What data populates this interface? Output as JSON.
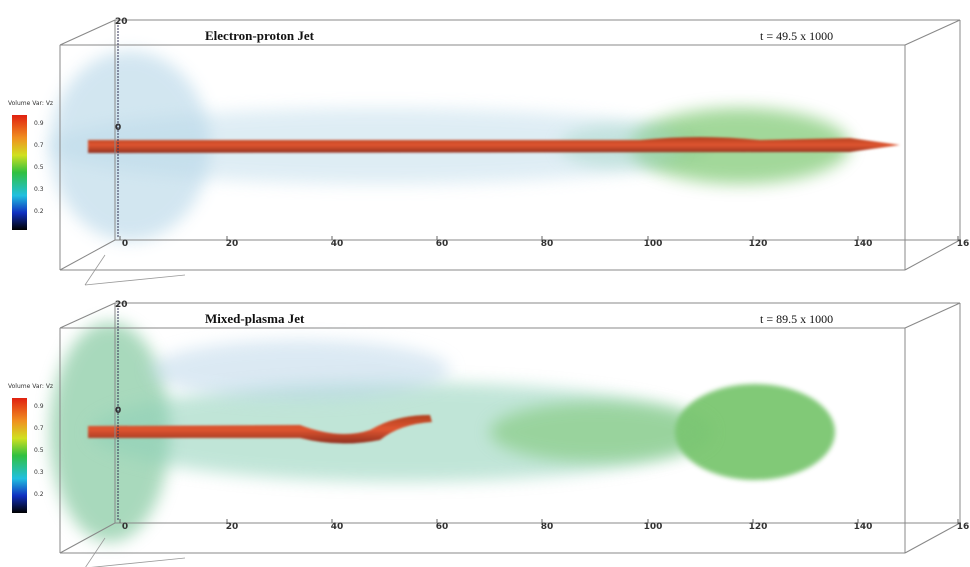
{
  "colorbar": {
    "title": "Volume Var: Vz",
    "labels": [
      "0.9",
      "0.7",
      "0.5",
      "0.3",
      "0.2"
    ]
  },
  "panels": [
    {
      "title": "Electron-proton Jet",
      "time": "t = 49.5 x 1000",
      "z_top": "20",
      "z_mid": "0",
      "x_ticks": [
        "0",
        "20",
        "40",
        "60",
        "80",
        "100",
        "120",
        "140",
        "16"
      ]
    },
    {
      "title": "Mixed-plasma Jet",
      "time": "t = 89.5 x 1000",
      "z_top": "20",
      "z_mid": "0",
      "x_ticks": [
        "0",
        "20",
        "40",
        "60",
        "80",
        "100",
        "120",
        "140",
        "16"
      ]
    }
  ]
}
